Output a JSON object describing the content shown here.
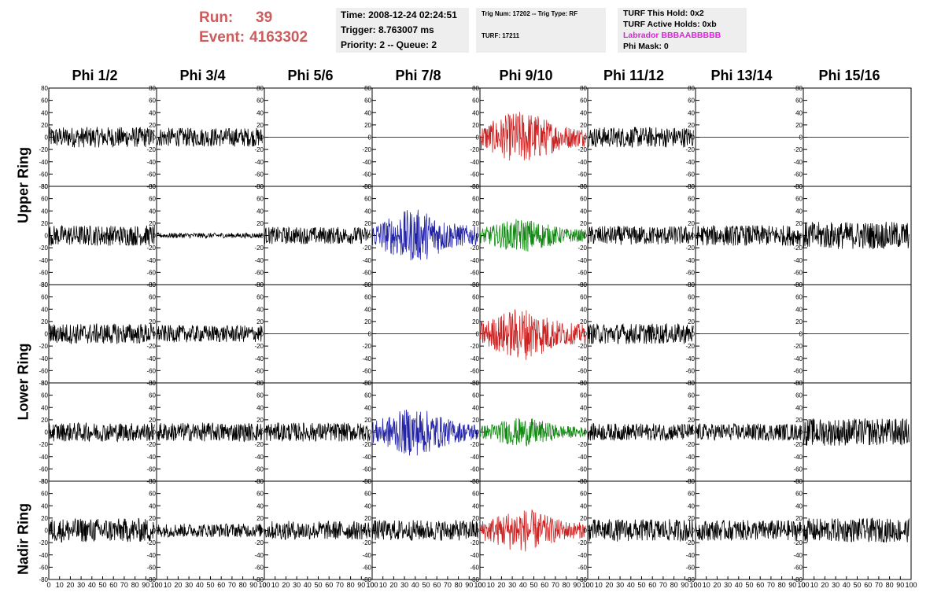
{
  "run_label": "Run:",
  "run_value": "39",
  "event_label": "Event:",
  "event_value": "4163302",
  "time_info": {
    "time": "Time: 2008-12-24 02:24:51",
    "trigger": "Trigger: 8.763007 ms",
    "priority": "Priority: 2 -- Queue: 2"
  },
  "trig_info": {
    "trig": "Trig Num: 17202 -- Trig Type: RF",
    "turf": "TURF: 17211"
  },
  "turf_info": {
    "hold": "TURF This Hold: 0x2",
    "active": "TURF Active Holds: 0xb",
    "labrador": "Labrador BBBAABBBBB",
    "phimask": "Phi Mask: 0"
  },
  "colors": {
    "run_text": "#cd5c5c",
    "labrador": "#e020e0",
    "red": "#cc2222",
    "blue": "#2222aa",
    "green": "#118811",
    "black": "#000000",
    "info_bg": "#eeeeee"
  },
  "chart_data": {
    "type": "line",
    "phi_labels": [
      "Phi 1/2",
      "Phi 3/4",
      "Phi 5/6",
      "Phi 7/8",
      "Phi 9/10",
      "Phi 11/12",
      "Phi 13/14",
      "Phi 15/16"
    ],
    "ring_labels": [
      "Upper Ring",
      "Lower Ring",
      "Nadir Ring"
    ],
    "ylim": [
      -80,
      80
    ],
    "y_ticks": [
      80,
      60,
      40,
      20,
      0,
      -20,
      -40,
      -60,
      -80
    ],
    "xlim": [
      0,
      100
    ],
    "x_ticks": [
      0,
      10,
      20,
      30,
      40,
      50,
      60,
      70,
      80,
      90,
      100
    ],
    "panels": [
      [
        {
          "color": "black",
          "amp": 12
        },
        {
          "color": "black",
          "amp": 11
        },
        {
          "color": "flat",
          "amp": 0
        },
        {
          "color": "flat",
          "amp": 0
        },
        {
          "color": "red",
          "amp": 22
        },
        {
          "color": "black",
          "amp": 12
        },
        {
          "color": "flat",
          "amp": 0
        },
        {
          "color": "flat",
          "amp": 0
        }
      ],
      [
        {
          "color": "black",
          "amp": 12
        },
        {
          "color": "black",
          "amp": 3
        },
        {
          "color": "black",
          "amp": 10
        },
        {
          "color": "blue",
          "amp": 22
        },
        {
          "color": "green",
          "amp": 14
        },
        {
          "color": "black",
          "amp": 11
        },
        {
          "color": "black",
          "amp": 12
        },
        {
          "color": "black",
          "amp": 16
        }
      ],
      [
        {
          "color": "black",
          "amp": 12
        },
        {
          "color": "black",
          "amp": 10
        },
        {
          "color": "flat",
          "amp": 0
        },
        {
          "color": "flat",
          "amp": 0
        },
        {
          "color": "red",
          "amp": 22
        },
        {
          "color": "black",
          "amp": 12
        },
        {
          "color": "flat",
          "amp": 0
        },
        {
          "color": "flat",
          "amp": 0
        }
      ],
      [
        {
          "color": "black",
          "amp": 11
        },
        {
          "color": "black",
          "amp": 11
        },
        {
          "color": "black",
          "amp": 11
        },
        {
          "color": "blue",
          "amp": 20
        },
        {
          "color": "green",
          "amp": 12
        },
        {
          "color": "black",
          "amp": 10
        },
        {
          "color": "black",
          "amp": 10
        },
        {
          "color": "black",
          "amp": 16
        }
      ],
      [
        {
          "color": "black",
          "amp": 14
        },
        {
          "color": "black",
          "amp": 8
        },
        {
          "color": "black",
          "amp": 11
        },
        {
          "color": "black",
          "amp": 12
        },
        {
          "color": "red",
          "amp": 18
        },
        {
          "color": "black",
          "amp": 13
        },
        {
          "color": "black",
          "amp": 12
        },
        {
          "color": "black",
          "amp": 14
        }
      ]
    ]
  }
}
